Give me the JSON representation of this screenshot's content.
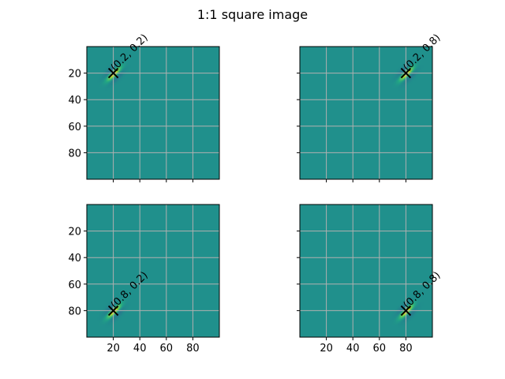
{
  "figure": {
    "title": "1:1 square image"
  },
  "chart_data": {
    "type": "heatmap",
    "title": "1:1 square image",
    "image_size": [
      100,
      100
    ],
    "grid": true,
    "xticks": [
      20,
      40,
      60,
      80
    ],
    "yticks": [
      20,
      40,
      60,
      80
    ],
    "xlim": [
      0,
      100
    ],
    "ylim": [
      100,
      0
    ],
    "colormap": "viridis",
    "marker_color": "#000000",
    "grid_color": "#b0b0b0",
    "panels": [
      {
        "name": "top-left",
        "row": 0,
        "col": 0,
        "center": [
          0.2,
          0.2
        ],
        "annotation": "(0.2, 0.2)",
        "show_xticklabels": false,
        "show_yticklabels": true
      },
      {
        "name": "top-right",
        "row": 0,
        "col": 1,
        "center": [
          0.2,
          0.8
        ],
        "annotation": "(0.2, 0.8)",
        "show_xticklabels": false,
        "show_yticklabels": false
      },
      {
        "name": "bottom-left",
        "row": 1,
        "col": 0,
        "center": [
          0.8,
          0.2
        ],
        "annotation": "(0.8, 0.2)",
        "show_xticklabels": true,
        "show_yticklabels": true
      },
      {
        "name": "bottom-right",
        "row": 1,
        "col": 1,
        "center": [
          0.8,
          0.8
        ],
        "annotation": "(0.8, 0.8)",
        "show_xticklabels": true,
        "show_yticklabels": false
      }
    ]
  }
}
